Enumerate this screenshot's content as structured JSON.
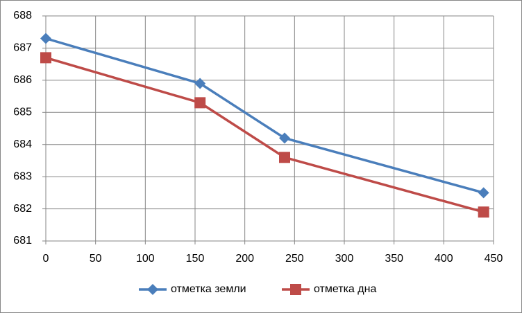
{
  "chart_data": {
    "type": "line",
    "series": [
      {
        "name": "отметка земли",
        "color": "#4a7ebb",
        "marker": "diamond",
        "x": [
          0,
          155,
          240,
          440
        ],
        "values": [
          687.3,
          685.9,
          684.2,
          682.5
        ]
      },
      {
        "name": "отметка дна",
        "color": "#be4b48",
        "marker": "square",
        "x": [
          0,
          155,
          240,
          440
        ],
        "values": [
          686.7,
          685.3,
          683.6,
          681.9
        ]
      }
    ],
    "xlim": [
      0,
      450
    ],
    "xticks": [
      0,
      50,
      100,
      150,
      200,
      250,
      300,
      350,
      400,
      450
    ],
    "ylim": [
      681,
      688
    ],
    "yticks": [
      681,
      682,
      683,
      684,
      685,
      686,
      687,
      688
    ],
    "grid": true,
    "legend": "bottom"
  }
}
